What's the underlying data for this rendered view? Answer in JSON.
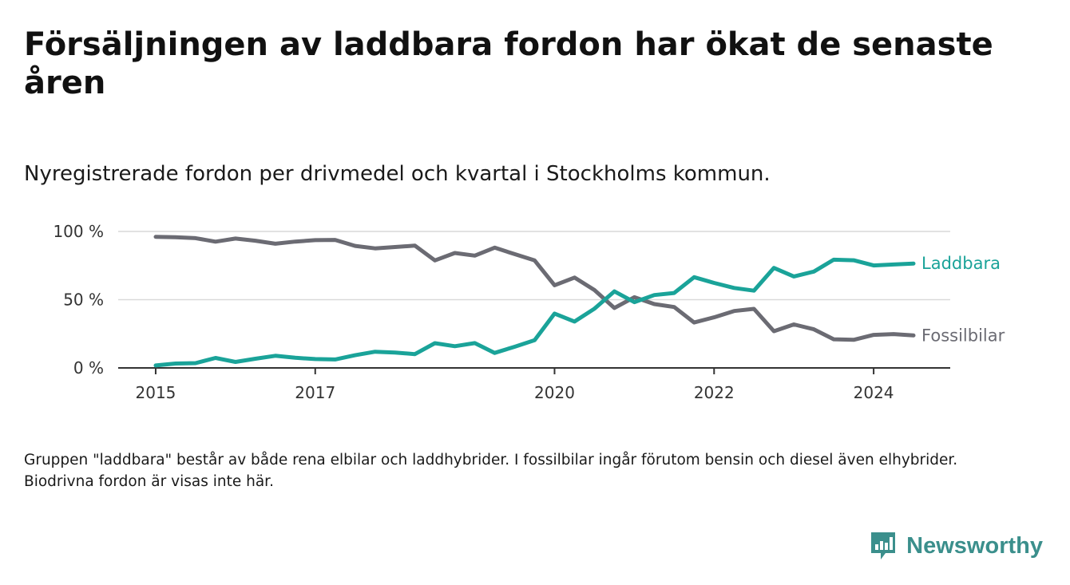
{
  "header": {
    "title": "Försäljningen av laddbara fordon har ökat de senaste åren",
    "subtitle": "Nyregistrerade fordon per drivmedel och kvartal i Stockholms kommun."
  },
  "footnote": "Gruppen \"laddbara\" består av både rena elbilar och laddhybrider. I fossilbilar ingår förutom bensin och diesel även elhybrider. Biodrivna fordon är visas inte här.",
  "brand": {
    "name": "Newsworthy",
    "color": "#3b8f8c",
    "icon": "newsworthy-logo-icon"
  },
  "chart_data": {
    "type": "line",
    "title": "Nyregistrerade fordon per drivmedel och kvartal i Stockholms kommun.",
    "xlabel": "",
    "ylabel": "",
    "x": [
      2015.0,
      2015.25,
      2015.5,
      2015.75,
      2016.0,
      2016.25,
      2016.5,
      2016.75,
      2017.0,
      2017.25,
      2017.5,
      2017.75,
      2018.0,
      2018.25,
      2018.5,
      2018.75,
      2019.0,
      2019.25,
      2019.5,
      2019.75,
      2020.0,
      2020.25,
      2020.5,
      2020.75,
      2021.0,
      2021.25,
      2021.5,
      2021.75,
      2022.0,
      2022.25,
      2022.5,
      2022.75,
      2023.0,
      2023.25,
      2023.5,
      2023.75,
      2024.0,
      2024.25,
      2024.5
    ],
    "xlim": [
      2014.53,
      2024.96
    ],
    "ylim": [
      0,
      100
    ],
    "grid": true,
    "x_ticks": [
      2015,
      2017,
      2020,
      2022,
      2024
    ],
    "x_tick_labels": [
      "2015",
      "2017",
      "2020",
      "2022",
      "2024"
    ],
    "y_ticks": [
      0,
      50,
      100
    ],
    "y_tick_labels": [
      "0 %",
      "50 %",
      "100 %"
    ],
    "series": [
      {
        "name": "Fossilbilar",
        "color": "#6b6b73",
        "values": [
          96,
          95.8,
          95.1,
          92.5,
          94.8,
          93.2,
          91,
          92.6,
          93.6,
          93.8,
          89.4,
          87.6,
          88.6,
          89.6,
          78.8,
          84.2,
          82.3,
          88.1,
          83.4,
          78.8,
          60.6,
          66.2,
          57.1,
          43.9,
          51.8,
          46.8,
          44.6,
          33.3,
          37.1,
          41.7,
          43.3,
          26.9,
          31.9,
          28.3,
          21,
          20.6,
          24.2,
          24.8,
          23.8
        ]
      },
      {
        "name": "Laddbara",
        "color": "#1aa399",
        "values": [
          1.8,
          3.2,
          3.5,
          7.3,
          4.4,
          6.7,
          8.9,
          7.4,
          6.5,
          6.2,
          9.3,
          11.9,
          11.3,
          10.1,
          18.1,
          15.9,
          18.2,
          11,
          15.5,
          20.3,
          39.8,
          34,
          43.4,
          56.1,
          48.2,
          53.4,
          54.9,
          66.5,
          62.3,
          58.6,
          56.6,
          73.3,
          67,
          70.6,
          79.3,
          78.9,
          75.1,
          75.8,
          76.5
        ]
      }
    ]
  }
}
